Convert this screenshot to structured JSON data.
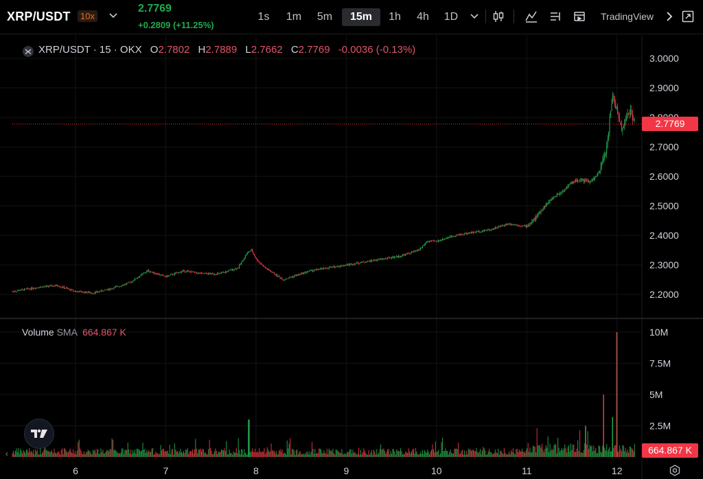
{
  "header": {
    "symbol": "XRP/USDT",
    "leverage": "10x",
    "last_price": "2.7769",
    "change": "+0.2809 (+11.25%)",
    "timeframes": [
      {
        "label": "1s",
        "active": false
      },
      {
        "label": "1m",
        "active": false
      },
      {
        "label": "5m",
        "active": false
      },
      {
        "label": "15m",
        "active": true
      },
      {
        "label": "1h",
        "active": false
      },
      {
        "label": "4h",
        "active": false
      },
      {
        "label": "1D",
        "active": false
      }
    ],
    "brand": "TradingView",
    "icons": [
      "chevron-down-icon",
      "candles-icon",
      "indicators-icon",
      "list-icon",
      "replay-icon",
      "chevron-right-icon",
      "fullscreen-icon"
    ]
  },
  "legend": {
    "title": "XRP/USDT · 15 · OKX",
    "o_label": "O",
    "o": "2.7802",
    "h_label": "H",
    "h": "2.7889",
    "l_label": "L",
    "l": "2.7662",
    "c_label": "C",
    "c": "2.7769",
    "change": "-0.0036 (-0.13%)"
  },
  "volume_legend": {
    "label": "Volume",
    "sma_label": "SMA",
    "value": "664.867 K"
  },
  "price_tag": "2.7769",
  "volume_tag": "664.867 K",
  "colors": {
    "up": "#22ab4f",
    "down": "#f23645",
    "background": "#000000",
    "grid": "#141414"
  },
  "chart_data": {
    "type": "candlestick",
    "price_axis": {
      "ticks": [
        "3.0000",
        "2.9000",
        "2.8000",
        "2.7000",
        "2.6000",
        "2.5000",
        "2.4000",
        "2.3000",
        "2.2000"
      ],
      "range": [
        2.15,
        3.03
      ]
    },
    "volume_axis": {
      "ticks": [
        "10M",
        "7.5M",
        "5M",
        "2.5M"
      ],
      "range": [
        0,
        10.5
      ]
    },
    "x_axis": {
      "ticks": [
        "6",
        "7",
        "8",
        "9",
        "10",
        "11",
        "12"
      ]
    },
    "price_series": {
      "name": "XRP/USDT",
      "x": [
        5.3,
        5.6,
        5.8,
        6.0,
        6.2,
        6.4,
        6.6,
        6.8,
        7.0,
        7.2,
        7.4,
        7.6,
        7.8,
        7.9,
        7.95,
        8.0,
        8.1,
        8.2,
        8.3,
        8.4,
        8.6,
        8.8,
        9.0,
        9.2,
        9.4,
        9.6,
        9.8,
        9.9,
        10.0,
        10.2,
        10.4,
        10.6,
        10.8,
        11.0,
        11.1,
        11.2,
        11.3,
        11.4,
        11.5,
        11.6,
        11.7,
        11.8,
        11.85,
        11.9,
        11.92,
        11.95,
        12.0,
        12.05,
        12.1,
        12.15,
        12.2
      ],
      "close": [
        2.21,
        2.225,
        2.23,
        2.21,
        2.205,
        2.22,
        2.24,
        2.28,
        2.26,
        2.28,
        2.27,
        2.27,
        2.29,
        2.34,
        2.35,
        2.32,
        2.29,
        2.27,
        2.25,
        2.26,
        2.28,
        2.29,
        2.3,
        2.31,
        2.32,
        2.33,
        2.35,
        2.38,
        2.38,
        2.4,
        2.41,
        2.42,
        2.44,
        2.43,
        2.46,
        2.5,
        2.53,
        2.55,
        2.58,
        2.59,
        2.58,
        2.61,
        2.66,
        2.72,
        2.8,
        2.88,
        2.82,
        2.76,
        2.8,
        2.82,
        2.7769
      ]
    },
    "volume_series": {
      "name": "Volume",
      "notable_spikes": [
        {
          "x": 7.92,
          "value": 3.0
        },
        {
          "x": 11.65,
          "value": 2.5
        },
        {
          "x": 11.85,
          "value": 5.0
        },
        {
          "x": 11.95,
          "value": 3.2
        },
        {
          "x": 12.0,
          "value": 10.0
        }
      ],
      "typical_level": 0.6,
      "sma": 0.664867
    }
  }
}
